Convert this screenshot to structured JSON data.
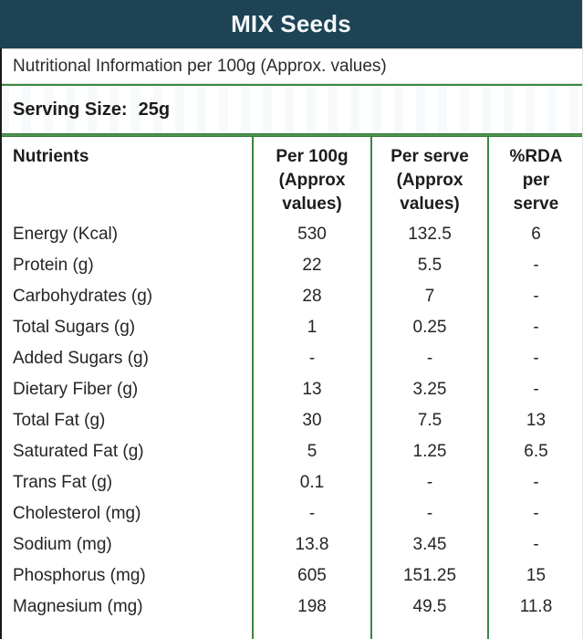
{
  "header": {
    "title": "MIX Seeds"
  },
  "info": {
    "text": "Nutritional Information per 100g (Approx. values)"
  },
  "serving": {
    "label": "Serving Size:",
    "value": "25g"
  },
  "colors": {
    "header_bg": "#1d4355",
    "grid_green": "#3a873e",
    "edge_black": "#1a1a1a",
    "text": "#212121"
  },
  "table": {
    "columns": [
      "Nutrients",
      "Per 100g\n(Approx\nvalues)",
      "Per serve\n(Approx\nvalues)",
      "%RDA\nper\nserve"
    ],
    "rows": [
      {
        "nutrient": "Energy (Kcal)",
        "per100g": "530",
        "per_serve": "132.5",
        "rda_per_serve": "6"
      },
      {
        "nutrient": "Protein (g)",
        "per100g": "22",
        "per_serve": "5.5",
        "rda_per_serve": "-"
      },
      {
        "nutrient": "Carbohydrates (g)",
        "per100g": "28",
        "per_serve": "7",
        "rda_per_serve": "-"
      },
      {
        "nutrient": "Total Sugars (g)",
        "per100g": "1",
        "per_serve": "0.25",
        "rda_per_serve": "-"
      },
      {
        "nutrient": "Added Sugars (g)",
        "per100g": "-",
        "per_serve": "-",
        "rda_per_serve": "-"
      },
      {
        "nutrient": "Dietary Fiber (g)",
        "per100g": "13",
        "per_serve": "3.25",
        "rda_per_serve": "-"
      },
      {
        "nutrient": "Total Fat (g)",
        "per100g": "30",
        "per_serve": "7.5",
        "rda_per_serve": "13"
      },
      {
        "nutrient": "Saturated Fat (g)",
        "per100g": "5",
        "per_serve": "1.25",
        "rda_per_serve": "6.5"
      },
      {
        "nutrient": "Trans Fat (g)",
        "per100g": "0.1",
        "per_serve": "-",
        "rda_per_serve": "-"
      },
      {
        "nutrient": "Cholesterol (mg)",
        "per100g": "-",
        "per_serve": "-",
        "rda_per_serve": "-"
      },
      {
        "nutrient": "Sodium (mg)",
        "per100g": "13.8",
        "per_serve": "3.45",
        "rda_per_serve": "-"
      },
      {
        "nutrient": "Phosphorus (mg)",
        "per100g": "605",
        "per_serve": "151.25",
        "rda_per_serve": "15"
      },
      {
        "nutrient": "Magnesium (mg)",
        "per100g": "198",
        "per_serve": "49.5",
        "rda_per_serve": "11.8"
      }
    ]
  }
}
